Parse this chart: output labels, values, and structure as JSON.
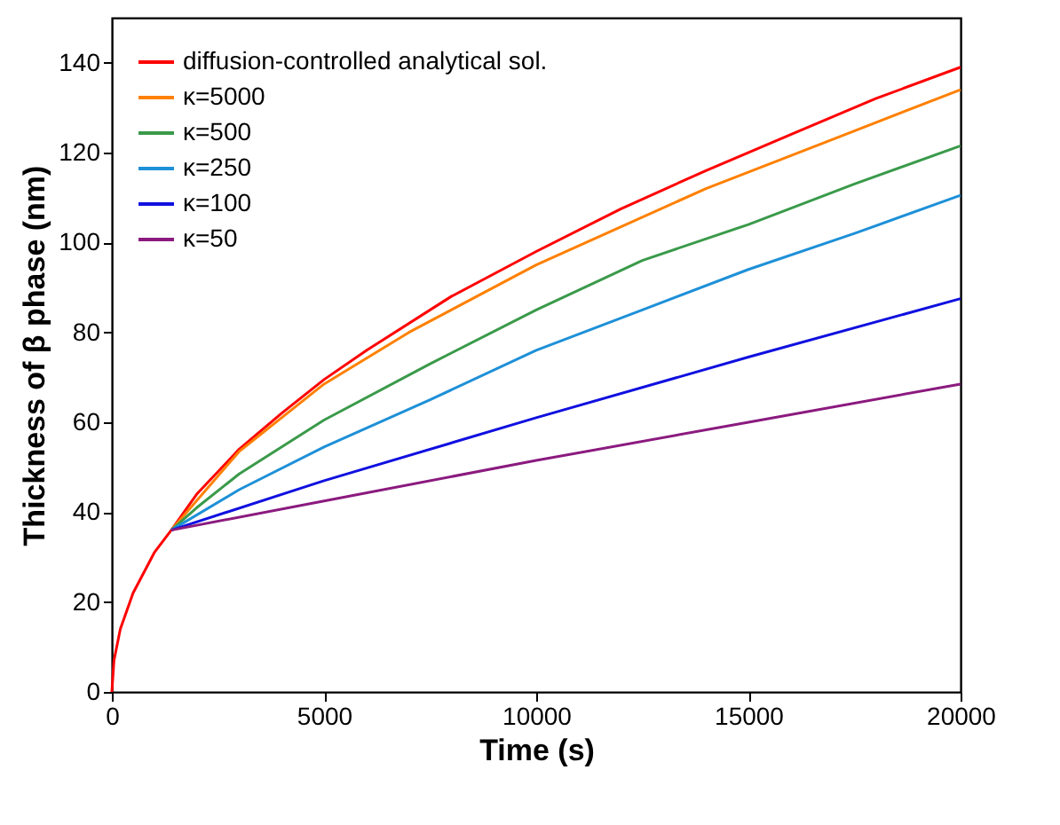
{
  "chart_data": {
    "type": "line",
    "xlabel": "Time (s)",
    "ylabel": "Thickness of β phase (nm)",
    "xlim": [
      0,
      20000
    ],
    "ylim": [
      0,
      150
    ],
    "xticks": [
      0,
      5000,
      10000,
      15000,
      20000
    ],
    "yticks": [
      0,
      20,
      40,
      60,
      80,
      100,
      120,
      140
    ],
    "legend": "top left",
    "series": [
      {
        "name": "diffusion-controlled analytical sol.",
        "color": "#ff0000",
        "x": [
          0,
          50,
          200,
          500,
          1000,
          1400,
          2000,
          3000,
          4000,
          5000,
          6000,
          8000,
          10000,
          12000,
          14000,
          16000,
          18000,
          20000
        ],
        "values": [
          0,
          7,
          14,
          22,
          31,
          36,
          44,
          54,
          62,
          69.5,
          76,
          88,
          98,
          107.5,
          116,
          124,
          132,
          139
        ]
      },
      {
        "name": "κ=5000",
        "color": "#ff8000",
        "x": [
          1400,
          3000,
          5000,
          7000,
          10000,
          14000,
          17000,
          20000
        ],
        "values": [
          36,
          53.5,
          68.5,
          80,
          95,
          112,
          123,
          134
        ]
      },
      {
        "name": "κ=500",
        "color": "#3a9a4a",
        "x": [
          1400,
          2000,
          3000,
          5000,
          7500,
          10000,
          12500,
          15000,
          17500,
          20000
        ],
        "values": [
          36,
          41,
          48.5,
          60.5,
          73,
          85,
          96,
          104,
          113,
          121.5
        ]
      },
      {
        "name": "κ=250",
        "color": "#1e90d8",
        "x": [
          1400,
          3000,
          5000,
          7500,
          10000,
          12500,
          15000,
          17500,
          20000
        ],
        "values": [
          36,
          45,
          54.5,
          65,
          76,
          85,
          94,
          102,
          110.5
        ]
      },
      {
        "name": "κ=100",
        "color": "#1010e0",
        "x": [
          1400,
          5000,
          10000,
          15000,
          20000
        ],
        "values": [
          36,
          47,
          61,
          74.5,
          87.5
        ]
      },
      {
        "name": "κ=50",
        "color": "#8b1a7f",
        "x": [
          1400,
          5000,
          10000,
          15000,
          20000
        ],
        "values": [
          36,
          42.5,
          51.5,
          60,
          68.5
        ]
      }
    ]
  }
}
